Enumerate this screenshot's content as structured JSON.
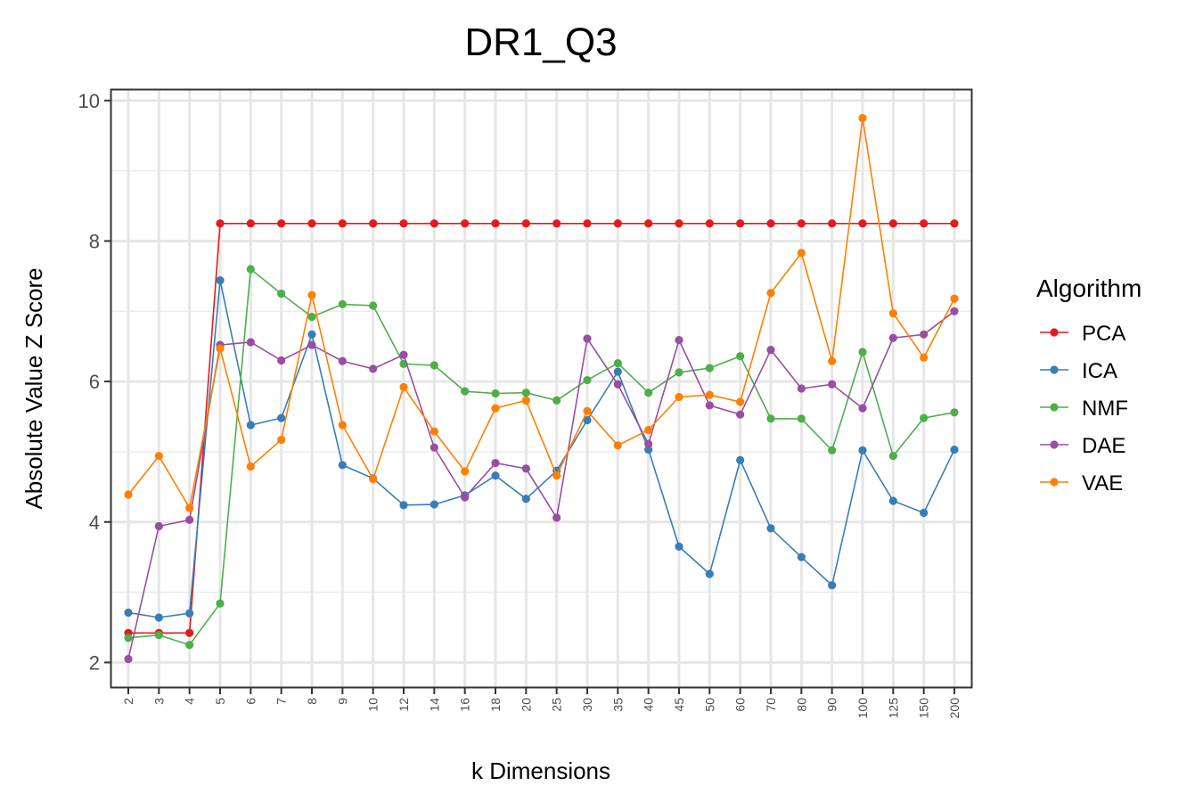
{
  "chart_data": {
    "type": "line",
    "title": "DR1_Q3",
    "xlabel": "k Dimensions",
    "ylabel": "Absolute Value Z Score",
    "categories": [
      "2",
      "3",
      "4",
      "5",
      "6",
      "7",
      "8",
      "9",
      "10",
      "12",
      "14",
      "16",
      "18",
      "20",
      "25",
      "30",
      "35",
      "40",
      "45",
      "50",
      "60",
      "70",
      "80",
      "90",
      "100",
      "125",
      "150",
      "200"
    ],
    "ylim": [
      1.65,
      10.15
    ],
    "yticks": [
      "2",
      "4",
      "6",
      "8",
      "10"
    ],
    "grid": true,
    "legend": {
      "title": "Algorithm",
      "position": "right"
    },
    "series": [
      {
        "name": "PCA",
        "color": "#E41A1C",
        "values": [
          2.42,
          2.42,
          2.42,
          8.25,
          8.25,
          8.25,
          8.25,
          8.25,
          8.25,
          8.25,
          8.25,
          8.25,
          8.25,
          8.25,
          8.25,
          8.25,
          8.25,
          8.25,
          8.25,
          8.25,
          8.25,
          8.25,
          8.25,
          8.25,
          8.25,
          8.25,
          8.25,
          8.25
        ]
      },
      {
        "name": "ICA",
        "color": "#377EB8",
        "values": [
          2.71,
          2.64,
          2.7,
          7.44,
          5.38,
          5.48,
          6.67,
          4.81,
          4.62,
          4.24,
          4.25,
          4.38,
          4.66,
          4.33,
          4.73,
          5.45,
          6.14,
          5.03,
          3.65,
          3.26,
          4.88,
          3.91,
          3.5,
          3.1,
          5.02,
          4.3,
          4.13,
          5.03
        ]
      },
      {
        "name": "NMF",
        "color": "#4DAF4A",
        "values": [
          2.35,
          2.39,
          2.25,
          2.84,
          7.6,
          7.25,
          6.92,
          7.1,
          7.08,
          6.25,
          6.23,
          5.86,
          5.83,
          5.84,
          5.73,
          6.02,
          6.26,
          5.84,
          6.13,
          6.19,
          6.36,
          5.47,
          5.47,
          5.02,
          6.42,
          4.94,
          5.48,
          5.56
        ]
      },
      {
        "name": "DAE",
        "color": "#984EA3",
        "values": [
          2.05,
          3.94,
          4.03,
          6.52,
          6.56,
          6.3,
          6.52,
          6.29,
          6.18,
          6.38,
          5.06,
          4.35,
          4.84,
          4.76,
          4.06,
          6.61,
          5.96,
          5.11,
          6.59,
          5.66,
          5.53,
          6.45,
          5.9,
          5.96,
          5.62,
          6.62,
          6.67,
          7.0
        ]
      },
      {
        "name": "VAE",
        "color": "#FF7F00",
        "values": [
          4.39,
          4.94,
          4.2,
          6.47,
          4.79,
          5.17,
          7.23,
          5.38,
          4.61,
          5.92,
          5.29,
          4.72,
          5.62,
          5.73,
          4.66,
          5.58,
          5.09,
          5.31,
          5.78,
          5.81,
          5.71,
          7.26,
          7.83,
          6.29,
          9.75,
          6.97,
          6.34,
          7.18
        ]
      }
    ]
  }
}
